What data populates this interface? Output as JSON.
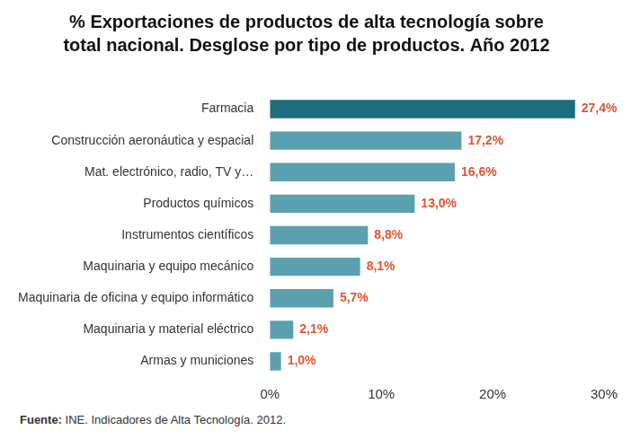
{
  "chart_data": {
    "type": "bar",
    "orientation": "horizontal",
    "title": [
      "% Exportaciones de productos de alta tecnología sobre",
      "total nacional. Desglose por tipo de productos. Año 2012"
    ],
    "categories": [
      "Farmacia",
      "Construcción aeronáutica y espacial",
      "Mat. electrónico, radio, TV y…",
      "Productos químicos",
      "Instrumentos científicos",
      "Maquinaria y equipo mecánico",
      "Maquinaria de oficina y equipo informático",
      "Maquinaria y material eléctrico",
      "Armas y municiones"
    ],
    "values": [
      27.4,
      17.2,
      16.6,
      13.0,
      8.8,
      8.1,
      5.7,
      2.1,
      1.0
    ],
    "value_labels": [
      "27,4%",
      "17,2%",
      "16,6%",
      "13,0%",
      "8,8%",
      "8,1%",
      "5,7%",
      "2,1%",
      "1,0%"
    ],
    "colors": [
      "#1c6e7d",
      "#5ba0ae",
      "#5ba0ae",
      "#5ba0ae",
      "#5ba0ae",
      "#5ba0ae",
      "#5ba0ae",
      "#5ba0ae",
      "#5ba0ae"
    ],
    "data_labels": true,
    "xlim": [
      0,
      30
    ],
    "xticks": [
      {
        "value": 0,
        "label": "0%"
      },
      {
        "value": 10,
        "label": "10%"
      },
      {
        "value": 20,
        "label": "20%"
      },
      {
        "value": 30,
        "label": "30%"
      }
    ],
    "grid": false,
    "source": {
      "label": "Fuente:",
      "text": "INE. Indicadores de Alta Tecnología. 2012."
    }
  }
}
